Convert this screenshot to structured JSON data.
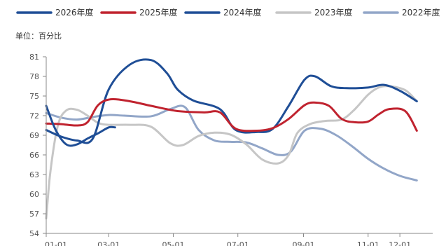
{
  "chart_data": {
    "type": "line",
    "unit_label": "单位：百分比",
    "x_ticks": [
      "01-01",
      "03-01",
      "05-01",
      "07-01",
      "09-01",
      "11-01",
      "12-01"
    ],
    "x_tick_days": [
      1,
      60,
      121,
      182,
      244,
      305,
      335
    ],
    "yticks": [
      54,
      57,
      60,
      63,
      66,
      69,
      72,
      75,
      78,
      81
    ],
    "ylim": [
      54,
      81
    ],
    "xlim": [
      1,
      366
    ],
    "legend_position": "top",
    "grid": false,
    "series": [
      {
        "name": "2026年度",
        "color": "#1f4e96",
        "x": [
          1,
          10,
          20,
          30,
          40,
          50,
          60,
          66
        ],
        "y": [
          73.5,
          69.8,
          67.6,
          67.6,
          68.5,
          69.3,
          70.2,
          70.2
        ]
      },
      {
        "name": "2025年度",
        "color": "#c0232f",
        "x": [
          1,
          15,
          30,
          40,
          50,
          62,
          80,
          100,
          125,
          150,
          165,
          180,
          200,
          215,
          230,
          245,
          255,
          268,
          280,
          292,
          305,
          315,
          325,
          340,
          351
        ],
        "y": [
          70.8,
          70.7,
          70.5,
          71.0,
          73.6,
          74.5,
          74.2,
          73.5,
          72.7,
          72.5,
          72.5,
          70.0,
          69.7,
          70.1,
          71.5,
          73.6,
          74.0,
          73.5,
          71.5,
          71.0,
          71.1,
          72.2,
          73.0,
          72.7,
          69.7
        ]
      },
      {
        "name": "2024年度",
        "color": "#1f4e96",
        "x": [
          1,
          15,
          30,
          45,
          60,
          80,
          100,
          115,
          125,
          140,
          165,
          180,
          200,
          215,
          230,
          245,
          255,
          270,
          285,
          305,
          320,
          335,
          351
        ],
        "y": [
          69.8,
          68.8,
          68.2,
          68.5,
          76.0,
          79.8,
          80.5,
          78.5,
          76.0,
          74.3,
          73.0,
          69.8,
          69.5,
          70.0,
          73.5,
          77.5,
          78.0,
          76.5,
          76.2,
          76.3,
          76.7,
          75.8,
          74.2
        ]
      },
      {
        "name": "2023年度",
        "color": "#c6c6c6",
        "x": [
          1,
          5,
          12,
          20,
          30,
          40,
          50,
          60,
          80,
          100,
          118,
          130,
          145,
          160,
          175,
          190,
          205,
          220,
          230,
          238,
          250,
          265,
          280,
          292,
          305,
          315,
          325,
          340,
          351
        ],
        "y": [
          56.3,
          63.5,
          70.5,
          72.8,
          72.9,
          72.0,
          70.9,
          70.6,
          70.6,
          70.3,
          67.8,
          67.5,
          68.9,
          69.4,
          69.1,
          67.6,
          65.3,
          64.7,
          66.0,
          69.3,
          70.7,
          71.2,
          71.4,
          72.9,
          75.2,
          76.3,
          76.5,
          75.9,
          74.2
        ]
      },
      {
        "name": "2022年度",
        "color": "#92a6c8",
        "x": [
          1,
          15,
          30,
          45,
          60,
          75,
          100,
          118,
          132,
          145,
          160,
          175,
          190,
          205,
          220,
          232,
          245,
          260,
          275,
          290,
          305,
          320,
          335,
          351
        ],
        "y": [
          72.4,
          71.7,
          71.4,
          71.8,
          72.1,
          72.0,
          71.9,
          73.0,
          73.3,
          69.8,
          68.2,
          68.0,
          67.9,
          67.0,
          66.0,
          66.5,
          69.7,
          70.0,
          69.0,
          67.3,
          65.4,
          63.9,
          62.8,
          62.1
        ]
      }
    ]
  }
}
